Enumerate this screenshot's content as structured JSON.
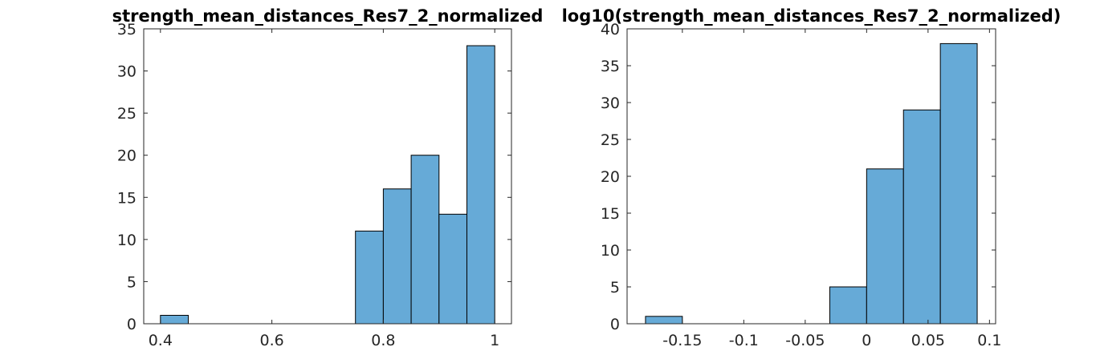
{
  "chart_data": [
    {
      "type": "bar",
      "title": "strength_mean_distances_Res7_2_normalized",
      "xlabel": "",
      "ylabel": "",
      "xlim": [
        0.37,
        1.03
      ],
      "ylim": [
        0,
        35
      ],
      "xticks": [
        0.4,
        0.6,
        0.8,
        1
      ],
      "xtick_labels": [
        "0.4",
        "0.6",
        "0.8",
        "1"
      ],
      "yticks": [
        0,
        5,
        10,
        15,
        20,
        25,
        30,
        35
      ],
      "ytick_labels": [
        "0",
        "5",
        "10",
        "15",
        "20",
        "25",
        "30",
        "35"
      ],
      "bin_edges": [
        0.4,
        0.45,
        0.5,
        0.55,
        0.6,
        0.65,
        0.7,
        0.75,
        0.8,
        0.85,
        0.9,
        0.95,
        1.0
      ],
      "values": [
        1,
        0,
        0,
        0,
        0,
        0,
        0,
        11,
        16,
        20,
        13,
        33
      ],
      "bar_color": "#66aad7",
      "edge_color": "#000000",
      "grid": false
    },
    {
      "type": "bar",
      "title": "log10(strength_mean_distances_Res7_2_normalized)",
      "xlabel": "",
      "ylabel": "",
      "xlim": [
        -0.195,
        0.105
      ],
      "ylim": [
        0,
        40
      ],
      "xticks": [
        -0.15,
        -0.1,
        -0.05,
        0,
        0.05,
        0.1
      ],
      "xtick_labels": [
        "-0.15",
        "-0.1",
        "-0.05",
        "0",
        "0.05",
        "0.1"
      ],
      "yticks": [
        0,
        5,
        10,
        15,
        20,
        25,
        30,
        35,
        40
      ],
      "ytick_labels": [
        "0",
        "5",
        "10",
        "15",
        "20",
        "25",
        "30",
        "35",
        "40"
      ],
      "bin_edges": [
        -0.18,
        -0.15,
        -0.12,
        -0.09,
        -0.06,
        -0.03,
        0,
        0.03,
        0.06,
        0.09
      ],
      "values": [
        1,
        0,
        0,
        0,
        0,
        5,
        21,
        29,
        38
      ],
      "bar_color": "#66aad7",
      "edge_color": "#000000",
      "grid": false
    }
  ]
}
